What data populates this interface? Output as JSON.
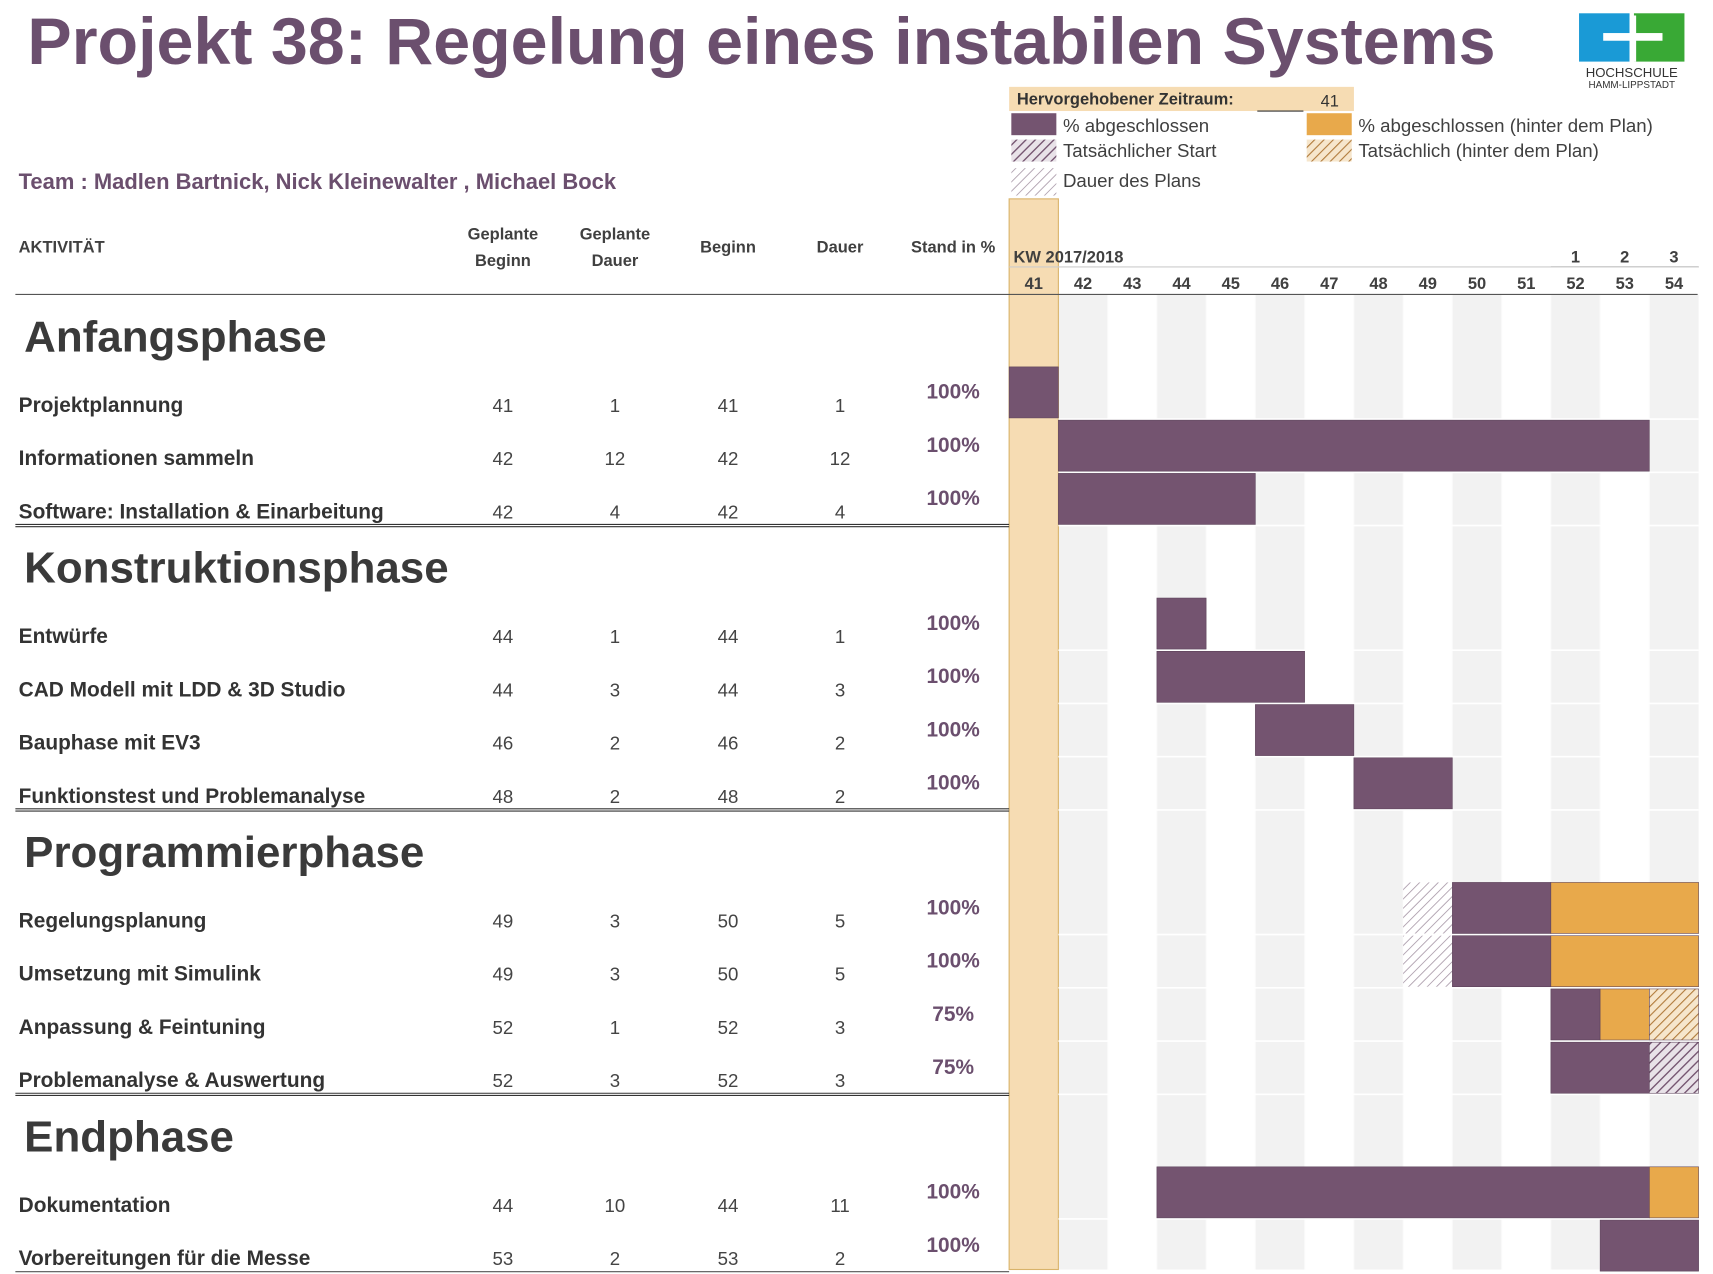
{
  "title": "Projekt 38: Regelung eines instabilen Systems",
  "logo": {
    "line1": "HOCHSCHULE",
    "line2": "HAMM-LIPPSTADT"
  },
  "team": "Team : Madlen Bartnick, Nick Kleinewalter , Michael Bock",
  "highlight": {
    "label": "Hervorgehobener Zeitraum:",
    "value": 41
  },
  "legend": [
    "% abgeschlossen",
    "Tatsächlicher Start",
    "Dauer des Plans",
    "% abgeschlossen (hinter dem Plan)",
    "Tatsächlich (hinter dem Plan)"
  ],
  "columns": [
    [
      "AKTIVITÄT"
    ],
    [
      "Geplante",
      "Beginn"
    ],
    [
      "Geplante",
      "Dauer"
    ],
    [
      "Beginn"
    ],
    [
      "Dauer"
    ],
    [
      "Stand in %"
    ]
  ],
  "timeline": {
    "label": "KW 2017/2018",
    "weeks": [
      41,
      42,
      43,
      44,
      45,
      46,
      47,
      48,
      49,
      50,
      51,
      52,
      53,
      54
    ],
    "next_year": [
      1,
      2,
      3
    ]
  },
  "phases": [
    {
      "name": "Anfangsphase",
      "tasks": [
        {
          "name": "Projektplannung",
          "plan_start": 41,
          "plan_duration": 1,
          "start": 41,
          "duration": 1,
          "percent": "100%"
        },
        {
          "name": "Informationen sammeln",
          "plan_start": 42,
          "plan_duration": 12,
          "start": 42,
          "duration": 12,
          "percent": "100%"
        },
        {
          "name": "Software: Installation & Einarbeitung",
          "plan_start": 42,
          "plan_duration": 4,
          "start": 42,
          "duration": 4,
          "percent": "100%"
        }
      ]
    },
    {
      "name": "Konstruktionsphase",
      "tasks": [
        {
          "name": "Entwürfe",
          "plan_start": 44,
          "plan_duration": 1,
          "start": 44,
          "duration": 1,
          "percent": "100%"
        },
        {
          "name": "CAD Modell mit LDD & 3D Studio",
          "plan_start": 44,
          "plan_duration": 3,
          "start": 44,
          "duration": 3,
          "percent": "100%"
        },
        {
          "name": "Bauphase mit EV3",
          "plan_start": 46,
          "plan_duration": 2,
          "start": 46,
          "duration": 2,
          "percent": "100%"
        },
        {
          "name": "Funktionstest und Problemanalyse",
          "plan_start": 48,
          "plan_duration": 2,
          "start": 48,
          "duration": 2,
          "percent": "100%"
        }
      ]
    },
    {
      "name": "Programmierphase",
      "tasks": [
        {
          "name": "Regelungsplanung",
          "plan_start": 49,
          "plan_duration": 3,
          "start": 50,
          "duration": 5,
          "percent": "100%"
        },
        {
          "name": "Umsetzung mit Simulink",
          "plan_start": 49,
          "plan_duration": 3,
          "start": 50,
          "duration": 5,
          "percent": "100%"
        },
        {
          "name": "Anpassung & Feintuning",
          "plan_start": 52,
          "plan_duration": 1,
          "start": 52,
          "duration": 3,
          "percent": "75%"
        },
        {
          "name": "Problemanalyse & Auswertung",
          "plan_start": 52,
          "plan_duration": 3,
          "start": 52,
          "duration": 3,
          "percent": "75%"
        }
      ]
    },
    {
      "name": "Endphase",
      "tasks": [
        {
          "name": "Dokumentation",
          "plan_start": 44,
          "plan_duration": 10,
          "start": 44,
          "duration": 11,
          "percent": "100%"
        },
        {
          "name": "Vorbereitungen für die Messe",
          "plan_start": 53,
          "plan_duration": 2,
          "start": 53,
          "duration": 2,
          "percent": "100%"
        }
      ]
    }
  ]
}
